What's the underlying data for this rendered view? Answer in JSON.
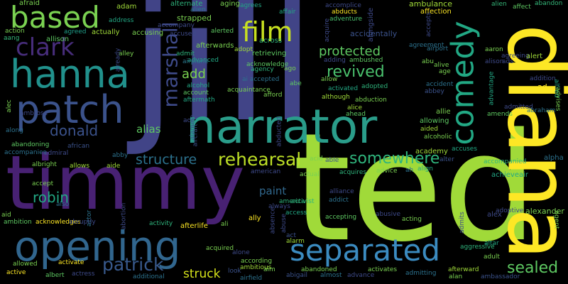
{
  "words": [
    {
      "text": "jill",
      "color": "#414487"
    },
    {
      "text": "ted",
      "color": "#a0da39"
    },
    {
      "text": "timmy",
      "color": "#482173"
    },
    {
      "text": "diana",
      "color": "#fde725"
    },
    {
      "text": "narrator",
      "color": "#2a9d8a"
    },
    {
      "text": "opening",
      "color": "#31668e"
    },
    {
      "text": "separated",
      "color": "#3b8bc0"
    },
    {
      "text": "hanna",
      "color": "#21918c"
    },
    {
      "text": "patch",
      "color": "#3b528b"
    },
    {
      "text": "comedy",
      "color": "#22a884"
    },
    {
      "text": "based",
      "color": "#7ad151"
    },
    {
      "text": "clark",
      "color": "#472d7b"
    },
    {
      "text": "film",
      "color": "#c8e020"
    },
    {
      "text": "marshall",
      "color": "#3e4a89"
    },
    {
      "text": "donald",
      "color": "#3b528b"
    },
    {
      "text": "rehearsal",
      "color": "#bddf26"
    },
    {
      "text": "somewhere",
      "color": "#2fb47c"
    },
    {
      "text": "structure",
      "color": "#2c728e"
    },
    {
      "text": "revived",
      "color": "#4ac16d"
    },
    {
      "text": "protected",
      "color": "#5ec962"
    },
    {
      "text": "add",
      "color": "#7ad151"
    },
    {
      "text": "patrick",
      "color": "#38598c"
    },
    {
      "text": "sealed",
      "color": "#5ec962"
    },
    {
      "text": "robin",
      "color": "#22a884"
    },
    {
      "text": "paint",
      "color": "#31688e"
    },
    {
      "text": "struck",
      "color": "#d5e21a"
    },
    {
      "text": "alias",
      "color": "#5ec962"
    },
    {
      "text": "alongside",
      "color": "#3e4989"
    },
    {
      "text": "accidentally",
      "color": "#3b528b"
    },
    {
      "text": "adventure",
      "color": "#4ac16d"
    },
    {
      "text": "afterwards",
      "color": "#7ad151"
    },
    {
      "text": "accused",
      "color": "#3e4a89"
    },
    {
      "text": "strapped",
      "color": "#7ad151"
    },
    {
      "text": "accompany",
      "color": "#3e4a89"
    },
    {
      "text": "accusing",
      "color": "#7ad151"
    },
    {
      "text": "actually",
      "color": "#a0da39"
    },
    {
      "text": "agreed",
      "color": "#1f9e89"
    },
    {
      "text": "allison",
      "color": "#5ec962"
    },
    {
      "text": "action",
      "color": "#7ad151"
    },
    {
      "text": "address",
      "color": "#22a884"
    },
    {
      "text": "adam",
      "color": "#a0da39"
    },
    {
      "text": "afraid",
      "color": "#7ad151"
    },
    {
      "text": "aang",
      "color": "#35b779"
    },
    {
      "text": "across",
      "color": "#2fb47c"
    },
    {
      "text": "agrees",
      "color": "#22a884"
    },
    {
      "text": "aging",
      "color": "#7ad151"
    },
    {
      "text": "alerted",
      "color": "#5ec962"
    },
    {
      "text": "alien",
      "color": "#2a788e"
    },
    {
      "text": "alternate",
      "color": "#2fb47c"
    },
    {
      "text": "affair",
      "color": "#22a884"
    },
    {
      "text": "accomplice",
      "color": "#3e4a89"
    },
    {
      "text": "abducts",
      "color": "#fde725"
    },
    {
      "text": "ambulance",
      "color": "#a0da39"
    },
    {
      "text": "affection",
      "color": "#fde725"
    },
    {
      "text": "abandon",
      "color": "#35b779"
    },
    {
      "text": "affect",
      "color": "#5ec962"
    },
    {
      "text": "alien",
      "color": "#35b779"
    },
    {
      "text": "adopt",
      "color": "#a0da39"
    },
    {
      "text": "acknowledge",
      "color": "#5ec962"
    },
    {
      "text": "agency",
      "color": "#2fb47c"
    },
    {
      "text": "ago",
      "color": "#7ad151"
    },
    {
      "text": "retrieving",
      "color": "#5ec962"
    },
    {
      "text": "admit",
      "color": "#2fb47c"
    },
    {
      "text": "advanced",
      "color": "#22a884"
    },
    {
      "text": "airplane",
      "color": "#2a788e"
    },
    {
      "text": "alley",
      "color": "#7ad151"
    },
    {
      "text": "alcohol",
      "color": "#22a884"
    },
    {
      "text": "account",
      "color": "#5ec962"
    },
    {
      "text": "aftermath",
      "color": "#22a884"
    },
    {
      "text": "afford",
      "color": "#7ad151"
    },
    {
      "text": "acquaintance",
      "color": "#7ad151"
    },
    {
      "text": "abe",
      "color": "#5ec962"
    },
    {
      "text": "ai accepted",
      "color": "#2c728e"
    },
    {
      "text": "adding",
      "color": "#3e4a89"
    },
    {
      "text": "ambushed",
      "color": "#5ec962"
    },
    {
      "text": "allow",
      "color": "#7ad151"
    },
    {
      "text": "activated",
      "color": "#22a884"
    },
    {
      "text": "although",
      "color": "#a0da39"
    },
    {
      "text": "adopted",
      "color": "#2fb47c"
    },
    {
      "text": "abduction",
      "color": "#7ad151"
    },
    {
      "text": "alice",
      "color": "#a0da39"
    },
    {
      "text": "ahead",
      "color": "#5ec962"
    },
    {
      "text": "agreement",
      "color": "#2c728e"
    },
    {
      "text": "airport",
      "color": "#2c728e"
    },
    {
      "text": "aaron",
      "color": "#7ad151"
    },
    {
      "text": "agreeing",
      "color": "#3e4a89"
    },
    {
      "text": "alison",
      "color": "#3e4a89"
    },
    {
      "text": "alert",
      "color": "#a0da39"
    },
    {
      "text": "abu",
      "color": "#7ad151"
    },
    {
      "text": "alive",
      "color": "#7ad151"
    },
    {
      "text": "age",
      "color": "#7ad151"
    },
    {
      "text": "accident",
      "color": "#2c728e"
    },
    {
      "text": "abbey",
      "color": "#3b528b"
    },
    {
      "text": "addition",
      "color": "#3e4a89"
    },
    {
      "text": "ad",
      "color": "#fde725"
    },
    {
      "text": "advantage",
      "color": "#22a884"
    },
    {
      "text": "alfred",
      "color": "#22a884"
    },
    {
      "text": "advises",
      "color": "#7ad151"
    },
    {
      "text": "admitted",
      "color": "#3e4a89"
    },
    {
      "text": "abraham",
      "color": "#2c728e"
    },
    {
      "text": "amends",
      "color": "#5ec962"
    },
    {
      "text": "allie",
      "color": "#7ad151"
    },
    {
      "text": "allowing",
      "color": "#5ec962"
    },
    {
      "text": "aided",
      "color": "#a0da39"
    },
    {
      "text": "alcoholic",
      "color": "#7ad151"
    },
    {
      "text": "academy",
      "color": "#a0da39"
    },
    {
      "text": "accuses",
      "color": "#22a884"
    },
    {
      "text": "accompanied",
      "color": "#2fb47c"
    },
    {
      "text": "alpha",
      "color": "#2c728e"
    },
    {
      "text": "achieveair",
      "color": "#22a884"
    },
    {
      "text": "alter",
      "color": "#3b528b"
    },
    {
      "text": "align",
      "color": "#22a884"
    },
    {
      "text": "ah",
      "color": "#2c728e"
    },
    {
      "text": "advice",
      "color": "#7ad151"
    },
    {
      "text": "acquires",
      "color": "#2fb47c"
    },
    {
      "text": "able",
      "color": "#3b528b"
    },
    {
      "text": "acid",
      "color": "#7ad151"
    },
    {
      "text": "actual",
      "color": "#7ad151"
    },
    {
      "text": "alliance",
      "color": "#3e4a89"
    },
    {
      "text": "addict",
      "color": "#2c728e"
    },
    {
      "text": "activist",
      "color": "#2fb47c"
    },
    {
      "text": "america",
      "color": "#2fb47c"
    },
    {
      "text": "always",
      "color": "#3e4a89"
    },
    {
      "text": "access",
      "color": "#22a884"
    },
    {
      "text": "accepting",
      "color": "#5ec962"
    },
    {
      "text": "abusive",
      "color": "#3e4a89"
    },
    {
      "text": "acting",
      "color": "#7ad151"
    },
    {
      "text": "admits",
      "color": "#3e4a89"
    },
    {
      "text": "aggressive",
      "color": "#2fb47c"
    },
    {
      "text": "altar",
      "color": "#22a884"
    },
    {
      "text": "adult",
      "color": "#7ad151"
    },
    {
      "text": "afterward",
      "color": "#a0da39"
    },
    {
      "text": "alan",
      "color": "#7ad151"
    },
    {
      "text": "admitting",
      "color": "#2c728e"
    },
    {
      "text": "ambassador",
      "color": "#3b528b"
    },
    {
      "text": "alex",
      "color": "#3e4a89"
    },
    {
      "text": "adoptive",
      "color": "#3e4a89"
    },
    {
      "text": "alexander",
      "color": "#7ad151"
    },
    {
      "text": "agent",
      "color": "#7ad151"
    },
    {
      "text": "abortion",
      "color": "#3e4a89"
    },
    {
      "text": "actor",
      "color": "#2c728e"
    },
    {
      "text": "activity",
      "color": "#2fb47c"
    },
    {
      "text": "afterlife",
      "color": "#fde725"
    },
    {
      "text": "ali",
      "color": "#7ad151"
    },
    {
      "text": "acquired",
      "color": "#7ad151"
    },
    {
      "text": "alone",
      "color": "#3e4a89"
    },
    {
      "text": "according",
      "color": "#7ad151"
    },
    {
      "text": "ambitious",
      "color": "#a0da39"
    },
    {
      "text": "aim",
      "color": "#7ad151"
    },
    {
      "text": "airfield",
      "color": "#2c728e"
    },
    {
      "text": "look",
      "color": "#3b528b"
    },
    {
      "text": "abigail",
      "color": "#3b528b"
    },
    {
      "text": "abandoned",
      "color": "#7ad151"
    },
    {
      "text": "almost",
      "color": "#2c728e"
    },
    {
      "text": "advance",
      "color": "#3e4a89"
    },
    {
      "text": "activates",
      "color": "#7ad151"
    },
    {
      "text": "absence",
      "color": "#3e4a89"
    },
    {
      "text": "abuse",
      "color": "#3e4a89"
    },
    {
      "text": "alarm",
      "color": "#a0da39"
    },
    {
      "text": "act",
      "color": "#3b528b"
    },
    {
      "text": "ally",
      "color": "#fde725"
    },
    {
      "text": "active",
      "color": "#fde725"
    },
    {
      "text": "albert",
      "color": "#5ec962"
    },
    {
      "text": "actress",
      "color": "#3e4a89"
    },
    {
      "text": "additional",
      "color": "#2c728e"
    },
    {
      "text": "allowed",
      "color": "#7ad151"
    },
    {
      "text": "activate",
      "color": "#fde725"
    },
    {
      "text": "aid",
      "color": "#7ad151"
    },
    {
      "text": "ambition",
      "color": "#5ec962"
    },
    {
      "text": "acknowledges",
      "color": "#fde725"
    },
    {
      "text": "abruptly",
      "color": "#3e4a89"
    },
    {
      "text": "also",
      "color": "#2c728e"
    },
    {
      "text": "accept",
      "color": "#7ad151"
    },
    {
      "text": "albright",
      "color": "#7ad151"
    },
    {
      "text": "allows",
      "color": "#a0da39"
    },
    {
      "text": "aide",
      "color": "#a0da39"
    },
    {
      "text": "african",
      "color": "#3b528b"
    },
    {
      "text": "abandoning",
      "color": "#5ec962"
    },
    {
      "text": "accompanies",
      "color": "#2c728e"
    },
    {
      "text": "admiral",
      "color": "#3e4a89"
    },
    {
      "text": "abby",
      "color": "#2c728e"
    },
    {
      "text": "along",
      "color": "#2c728e"
    },
    {
      "text": "alec",
      "color": "#7ad151"
    },
    {
      "text": "ambrose",
      "color": "#3e4a89"
    },
    {
      "text": "ace",
      "color": "#3e4a89"
    },
    {
      "text": "alamein",
      "color": "#3b528b"
    },
    {
      "text": "aircraft",
      "color": "#3b528b"
    },
    {
      "text": "american",
      "color": "#3e4a89"
    },
    {
      "text": "abducted",
      "color": "#3e4a89"
    },
    {
      "text": "acquire",
      "color": "#3e4a89"
    },
    {
      "text": "accepts",
      "color": "#3e4a89"
    },
    {
      "text": "already",
      "color": "#3e4a89"
    },
    {
      "text": "ads",
      "color": "#3e4a89"
    }
  ]
}
